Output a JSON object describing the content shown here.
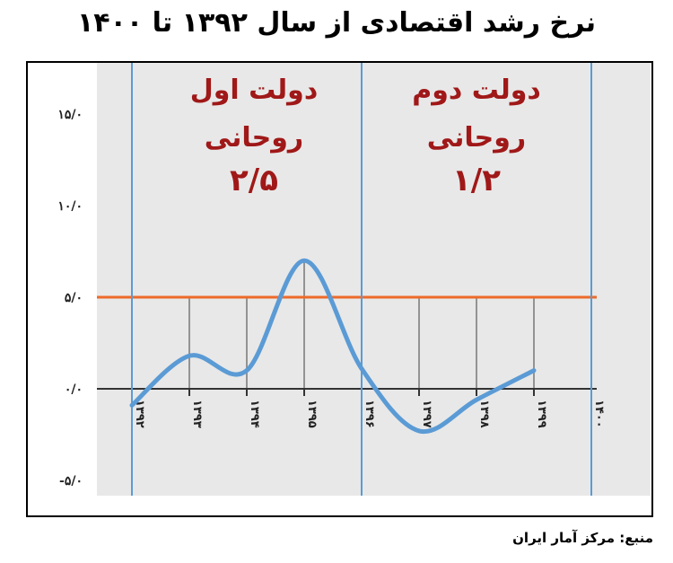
{
  "title": "نرخ رشد اقتصادی از سال ۱۳۹۲ تا ۱۴۰۰",
  "source": "منبع: مرکز آمار ایران",
  "colors": {
    "line": "#5b9bd5",
    "threshold": "#ee6a2a",
    "divider": "#5b9bd5",
    "era_text": "#a01818",
    "plot_bg": "#e8e8e8"
  },
  "chart_data": {
    "type": "line",
    "title": "نرخ رشد اقتصادی از سال ۱۳۹۲ تا ۱۴۰۰",
    "x": [
      "۱۳۹۲",
      "۱۳۹۳",
      "۱۳۹۴",
      "۱۳۹۵",
      "۱۳۹۶",
      "۱۳۹۷",
      "۱۳۹۸",
      "۱۳۹۹",
      "۱۴۰۰"
    ],
    "yticks": [
      "۱۵/۰",
      "۱۰/۰",
      "۵/۰",
      "۰/۰",
      "-۵/۰"
    ],
    "ylim": [
      -5,
      15
    ],
    "series": [
      {
        "values": [
          -0.9,
          1.8,
          1.0,
          7.0,
          1.1,
          -2.3,
          -0.6,
          1.0,
          null
        ]
      }
    ],
    "reference_line": 5,
    "grid": false,
    "annotations": [
      {
        "line1": "دولت اول",
        "line2": "روحانی",
        "line3": "۲/۵"
      },
      {
        "line1": "دولت دوم",
        "line2": "روحانی",
        "line3": "۱/۲"
      }
    ]
  }
}
